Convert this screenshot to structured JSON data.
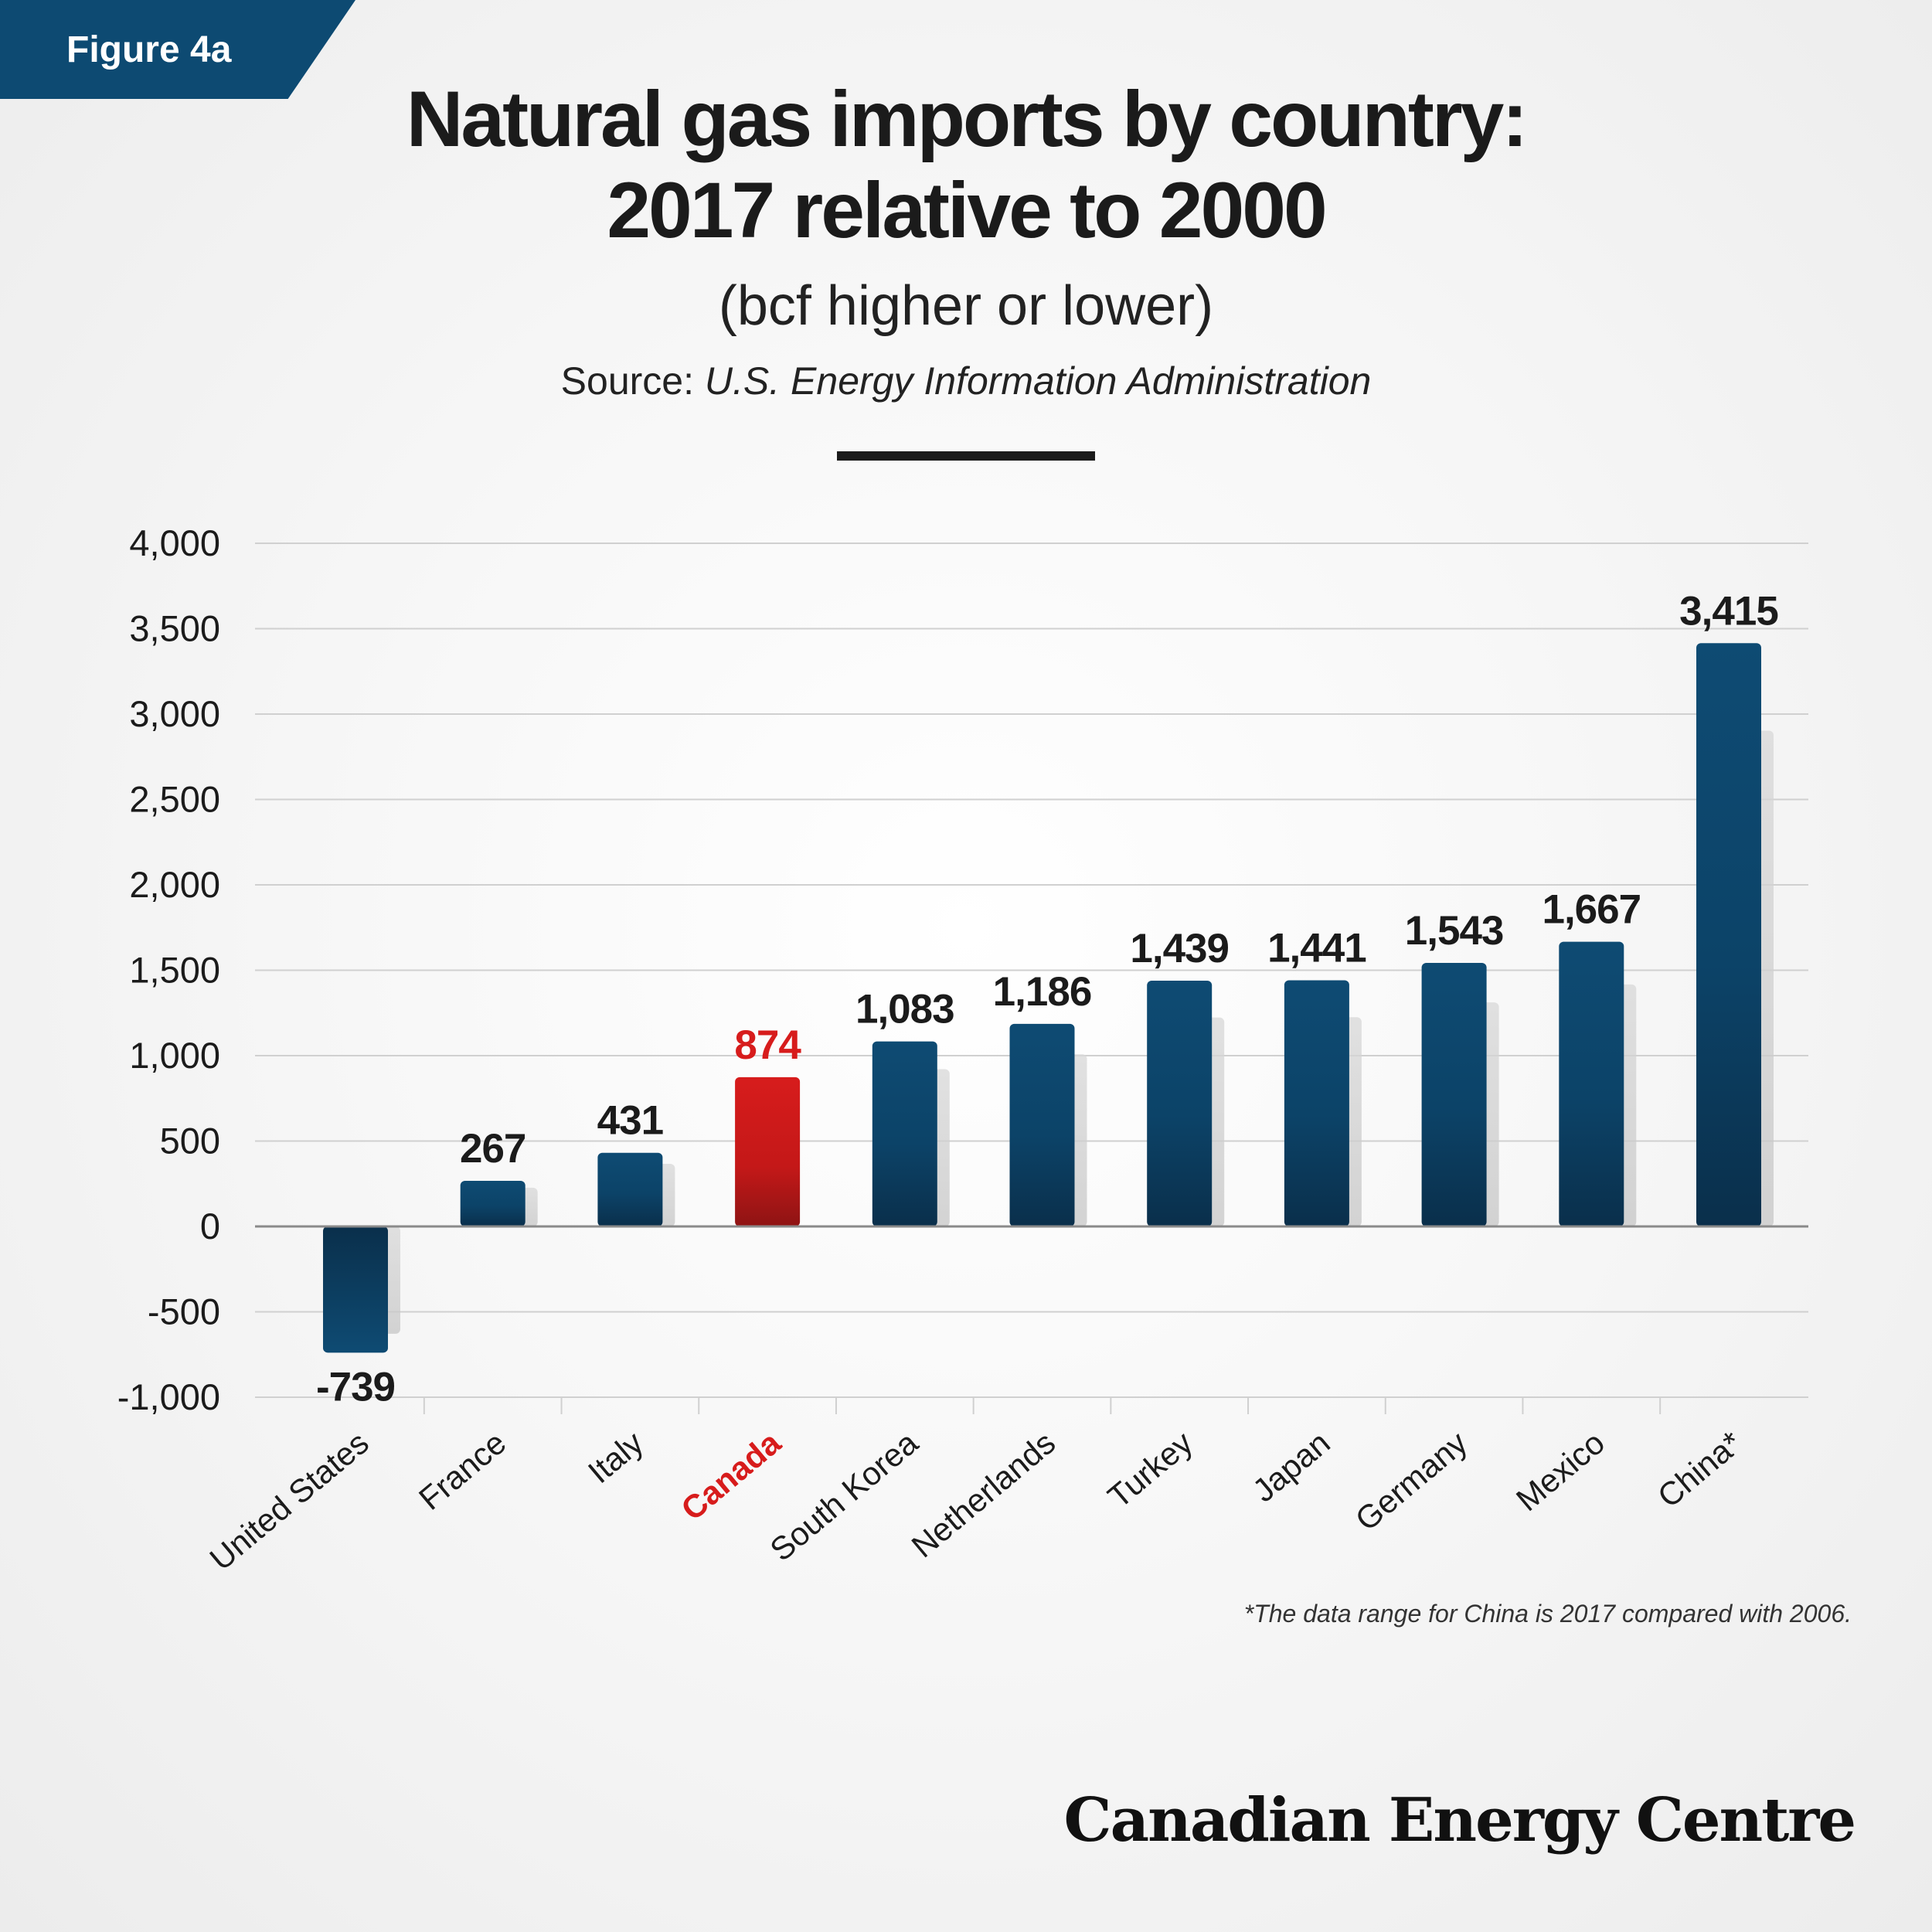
{
  "figure_label": "Figure 4a",
  "chart_data": {
    "type": "bar",
    "title": [
      "Natural gas imports by country:",
      "2017 relative to 2000"
    ],
    "subtitle": "(bcf higher or lower)",
    "source_prefix": "Source:",
    "source_name": "U.S. Energy Information Administration",
    "categories": [
      "United States",
      "France",
      "Italy",
      "Canada",
      "South Korea",
      "Netherlands",
      "Turkey",
      "Japan",
      "Germany",
      "Mexico",
      "China*"
    ],
    "values": [
      -739,
      267,
      431,
      874,
      1083,
      1186,
      1439,
      1441,
      1543,
      1667,
      3415
    ],
    "value_labels": [
      "-739",
      "267",
      "431",
      "874",
      "1,083",
      "1,186",
      "1,439",
      "1,441",
      "1,543",
      "1,667",
      "3,415"
    ],
    "highlight_category": "Canada",
    "y_ticks": [
      4000,
      3500,
      3000,
      2500,
      2000,
      1500,
      1000,
      500,
      0,
      -500,
      -1000
    ],
    "y_tick_labels": [
      "4,000",
      "3,500",
      "3,000",
      "2,500",
      "2,000",
      "1,500",
      "1,000",
      "500",
      "0",
      "-500",
      "-1,000"
    ],
    "ylim": [
      -1000,
      4000
    ],
    "grid": true,
    "xlabel": "",
    "ylabel": "",
    "colors": {
      "bar": "#0d4a72",
      "bar_dark": "#0a2f4b",
      "highlight": "#d71c1c",
      "highlight_dark": "#8e1414",
      "grid": "#d0d0d0",
      "axis": "#8a8a8a"
    }
  },
  "footnote": "*The data range for China is 2017 compared with 2006.",
  "brand": "Canadian Energy Centre"
}
